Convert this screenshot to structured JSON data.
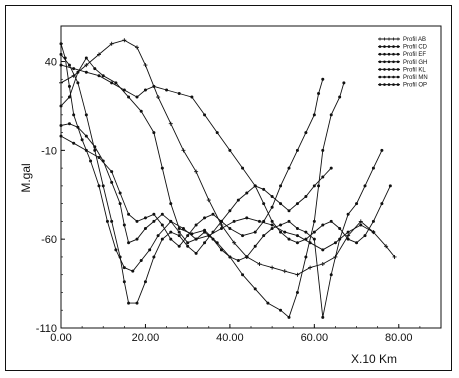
{
  "chart_data": {
    "type": "line",
    "xlabel": "X.10  Km",
    "ylabel": "M.gal",
    "xlim": [
      0,
      90
    ],
    "ylim": [
      -110,
      60
    ],
    "x_ticks": [
      0,
      20,
      40,
      60,
      80
    ],
    "x_tick_labels": [
      "0.00",
      "20.00",
      "40.00",
      "60.00",
      "80.00"
    ],
    "y_ticks": [
      40,
      -10,
      -60,
      -110
    ],
    "y_tick_labels": [
      "40",
      "-10",
      "-60",
      "-110"
    ],
    "legend_position": "top-right",
    "series": [
      {
        "name": "Profil  AB",
        "marker": "plus",
        "points": [
          [
            0,
            28
          ],
          [
            3,
            32
          ],
          [
            6,
            38
          ],
          [
            9,
            44
          ],
          [
            12,
            50
          ],
          [
            15,
            52
          ],
          [
            18,
            48
          ],
          [
            20,
            38
          ],
          [
            23,
            20
          ],
          [
            26,
            5
          ],
          [
            29,
            -10
          ],
          [
            32,
            -22
          ],
          [
            35,
            -38
          ],
          [
            38,
            -52
          ],
          [
            41,
            -62
          ],
          [
            44,
            -70
          ],
          [
            47,
            -74
          ],
          [
            50,
            -76
          ],
          [
            53,
            -78
          ],
          [
            56,
            -80
          ],
          [
            59,
            -76
          ],
          [
            62,
            -74
          ],
          [
            65,
            -70
          ],
          [
            68,
            -58
          ],
          [
            71,
            -50
          ],
          [
            74,
            -56
          ],
          [
            77,
            -64
          ],
          [
            79,
            -70
          ]
        ]
      },
      {
        "name": "Profil  CD",
        "marker": "dot",
        "points": [
          [
            0,
            15
          ],
          [
            2,
            20
          ],
          [
            4,
            34
          ],
          [
            6,
            42
          ],
          [
            8,
            36
          ],
          [
            10,
            32
          ],
          [
            13,
            28
          ],
          [
            16,
            20
          ],
          [
            19,
            12
          ],
          [
            22,
            0
          ],
          [
            24,
            -20
          ],
          [
            26,
            -40
          ],
          [
            28,
            -54
          ],
          [
            31,
            -57
          ],
          [
            34,
            -55
          ],
          [
            37,
            -62
          ],
          [
            40,
            -70
          ],
          [
            43,
            -80
          ],
          [
            46,
            -88
          ],
          [
            49,
            -96
          ],
          [
            52,
            -100
          ],
          [
            54,
            -104
          ],
          [
            56,
            -90
          ],
          [
            58,
            -70
          ],
          [
            60,
            -50
          ],
          [
            61,
            -30
          ],
          [
            62,
            -10
          ],
          [
            64,
            10
          ],
          [
            66,
            20
          ],
          [
            67,
            28
          ]
        ]
      },
      {
        "name": "Profil  EF",
        "marker": "dot",
        "points": [
          [
            0,
            50
          ],
          [
            1,
            42
          ],
          [
            2,
            26
          ],
          [
            3,
            10
          ],
          [
            5,
            -4
          ],
          [
            7,
            -16
          ],
          [
            9,
            -30
          ],
          [
            11,
            -50
          ],
          [
            13,
            -66
          ],
          [
            15,
            -76
          ],
          [
            17,
            -78
          ],
          [
            19,
            -72
          ],
          [
            21,
            -66
          ],
          [
            23,
            -58
          ],
          [
            26,
            -50
          ],
          [
            29,
            -54
          ],
          [
            32,
            -60
          ],
          [
            35,
            -58
          ],
          [
            38,
            -54
          ],
          [
            41,
            -50
          ],
          [
            44,
            -48
          ],
          [
            47,
            -50
          ],
          [
            50,
            -52
          ],
          [
            53,
            -56
          ],
          [
            56,
            -58
          ],
          [
            59,
            -62
          ],
          [
            62,
            -66
          ],
          [
            65,
            -62
          ],
          [
            68,
            -56
          ],
          [
            71,
            -52
          ],
          [
            74,
            -56
          ]
        ]
      },
      {
        "name": "Profil  GH",
        "marker": "dot",
        "points": [
          [
            0,
            44
          ],
          [
            2,
            38
          ],
          [
            4,
            28
          ],
          [
            6,
            10
          ],
          [
            8,
            -10
          ],
          [
            10,
            -30
          ],
          [
            12,
            -50
          ],
          [
            14,
            -70
          ],
          [
            15,
            -84
          ],
          [
            16,
            -96
          ],
          [
            18,
            -96
          ],
          [
            20,
            -84
          ],
          [
            22,
            -70
          ],
          [
            24,
            -60
          ],
          [
            26,
            -56
          ],
          [
            28,
            -58
          ],
          [
            30,
            -64
          ],
          [
            32,
            -68
          ],
          [
            34,
            -62
          ],
          [
            36,
            -56
          ],
          [
            38,
            -50
          ],
          [
            40,
            -44
          ],
          [
            42,
            -38
          ],
          [
            44,
            -34
          ],
          [
            46,
            -30
          ],
          [
            48,
            -32
          ],
          [
            50,
            -36
          ],
          [
            52,
            -40
          ],
          [
            54,
            -44
          ],
          [
            56,
            -40
          ],
          [
            58,
            -36
          ],
          [
            60,
            -30
          ],
          [
            62,
            -25
          ],
          [
            64,
            -20
          ]
        ]
      },
      {
        "name": "Profil  KL",
        "marker": "dot",
        "points": [
          [
            0,
            -2
          ],
          [
            3,
            -6
          ],
          [
            6,
            -10
          ],
          [
            9,
            -14
          ],
          [
            12,
            -22
          ],
          [
            14,
            -34
          ],
          [
            16,
            -46
          ],
          [
            18,
            -50
          ],
          [
            20,
            -48
          ],
          [
            22,
            -46
          ],
          [
            24,
            -52
          ],
          [
            26,
            -60
          ],
          [
            28,
            -64
          ],
          [
            30,
            -58
          ],
          [
            32,
            -52
          ],
          [
            34,
            -48
          ],
          [
            36,
            -46
          ],
          [
            38,
            -50
          ],
          [
            40,
            -54
          ],
          [
            43,
            -58
          ],
          [
            46,
            -56
          ],
          [
            48,
            -50
          ],
          [
            50,
            -42
          ],
          [
            52,
            -30
          ],
          [
            54,
            -20
          ],
          [
            56,
            -10
          ],
          [
            58,
            0
          ],
          [
            60,
            10
          ],
          [
            61,
            22
          ],
          [
            62,
            30
          ]
        ]
      },
      {
        "name": "Profil  MN",
        "marker": "dot",
        "points": [
          [
            0,
            4
          ],
          [
            2,
            5
          ],
          [
            4,
            3
          ],
          [
            6,
            -2
          ],
          [
            8,
            -8
          ],
          [
            10,
            -16
          ],
          [
            12,
            -28
          ],
          [
            14,
            -40
          ],
          [
            15,
            -52
          ],
          [
            16,
            -62
          ],
          [
            18,
            -60
          ],
          [
            20,
            -54
          ],
          [
            22,
            -50
          ],
          [
            24,
            -46
          ],
          [
            26,
            -50
          ],
          [
            28,
            -56
          ],
          [
            30,
            -62
          ],
          [
            32,
            -60
          ],
          [
            34,
            -56
          ],
          [
            36,
            -60
          ],
          [
            38,
            -66
          ],
          [
            40,
            -70
          ],
          [
            42,
            -72
          ],
          [
            44,
            -70
          ],
          [
            46,
            -64
          ],
          [
            48,
            -58
          ],
          [
            50,
            -54
          ],
          [
            52,
            -52
          ],
          [
            54,
            -50
          ],
          [
            56,
            -54
          ],
          [
            58,
            -56
          ],
          [
            60,
            -60
          ],
          [
            62,
            -104
          ],
          [
            64,
            -80
          ],
          [
            66,
            -60
          ],
          [
            68,
            -46
          ],
          [
            70,
            -40
          ],
          [
            72,
            -30
          ],
          [
            74,
            -20
          ],
          [
            76,
            -10
          ]
        ]
      },
      {
        "name": "Profil  OP",
        "marker": "dot",
        "points": [
          [
            0,
            38
          ],
          [
            3,
            36
          ],
          [
            6,
            34
          ],
          [
            9,
            32
          ],
          [
            12,
            28
          ],
          [
            15,
            24
          ],
          [
            18,
            20
          ],
          [
            20,
            24
          ],
          [
            22,
            26
          ],
          [
            25,
            24
          ],
          [
            28,
            22
          ],
          [
            31,
            20
          ],
          [
            34,
            10
          ],
          [
            37,
            0
          ],
          [
            40,
            -10
          ],
          [
            43,
            -20
          ],
          [
            46,
            -30
          ],
          [
            48,
            -40
          ],
          [
            50,
            -50
          ],
          [
            52,
            -56
          ],
          [
            54,
            -60
          ],
          [
            56,
            -62
          ],
          [
            58,
            -60
          ],
          [
            60,
            -56
          ],
          [
            62,
            -52
          ],
          [
            64,
            -50
          ],
          [
            66,
            -54
          ],
          [
            68,
            -60
          ],
          [
            70,
            -62
          ],
          [
            72,
            -58
          ],
          [
            74,
            -50
          ],
          [
            76,
            -40
          ],
          [
            78,
            -30
          ]
        ]
      }
    ]
  }
}
